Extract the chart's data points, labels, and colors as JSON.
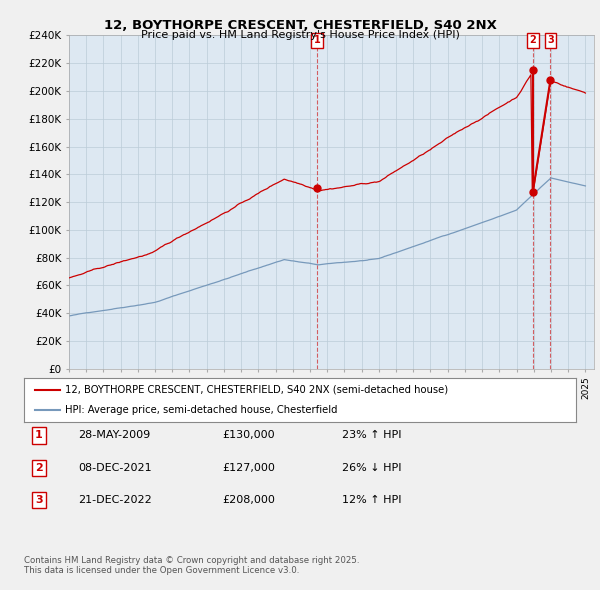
{
  "title": "12, BOYTHORPE CRESCENT, CHESTERFIELD, S40 2NX",
  "subtitle": "Price paid vs. HM Land Registry's House Price Index (HPI)",
  "ylabel_ticks": [
    "£0",
    "£20K",
    "£40K",
    "£60K",
    "£80K",
    "£100K",
    "£120K",
    "£140K",
    "£160K",
    "£180K",
    "£200K",
    "£220K",
    "£240K"
  ],
  "ylim": [
    0,
    240000
  ],
  "ytick_values": [
    0,
    20000,
    40000,
    60000,
    80000,
    100000,
    120000,
    140000,
    160000,
    180000,
    200000,
    220000,
    240000
  ],
  "legend1": "12, BOYTHORPE CRESCENT, CHESTERFIELD, S40 2NX (semi-detached house)",
  "legend2": "HPI: Average price, semi-detached house, Chesterfield",
  "legend1_color": "#cc0000",
  "legend2_color": "#7799bb",
  "plot_bg_color": "#dde8f2",
  "grid_color": "#bbccd8",
  "footnote": "Contains HM Land Registry data © Crown copyright and database right 2025.\nThis data is licensed under the Open Government Licence v3.0.",
  "transactions": [
    {
      "num": "1",
      "date": "28-MAY-2009",
      "price": "£130,000",
      "hpi": "23% ↑ HPI"
    },
    {
      "num": "2",
      "date": "08-DEC-2021",
      "price": "£127,000",
      "hpi": "26% ↓ HPI"
    },
    {
      "num": "3",
      "date": "21-DEC-2022",
      "price": "£208,000",
      "hpi": "12% ↑ HPI"
    }
  ],
  "transaction_dates": [
    2009.42,
    2021.94,
    2022.97
  ],
  "transaction_prices": [
    130000,
    127000,
    208000
  ],
  "bg_color": "#f0f0f0"
}
